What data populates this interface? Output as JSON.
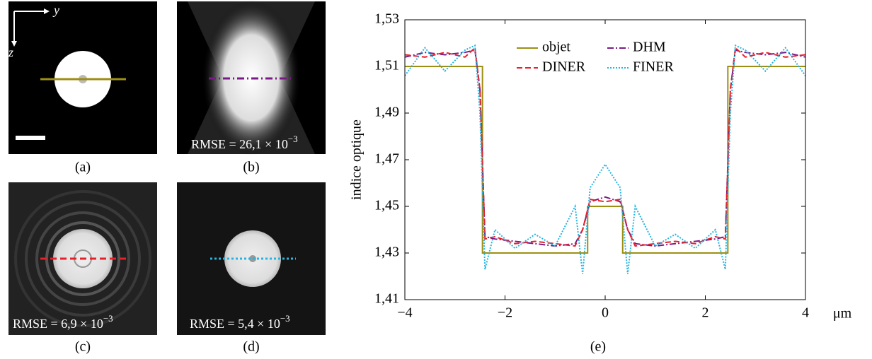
{
  "panels": [
    {
      "caption": "(a)",
      "axis_y": "y",
      "axis_z": "z"
    },
    {
      "caption": "(b)",
      "annotation": "RMSE = 26,1 × 10",
      "exponent": "−3"
    },
    {
      "caption": "(c)",
      "annotation": "RMSE = 6,9 × 10",
      "exponent": "−3"
    },
    {
      "caption": "(d)",
      "annotation": "RMSE = 5,4 × 10",
      "exponent": "−3"
    }
  ],
  "chart_data": {
    "type": "line",
    "caption": "(e)",
    "ylabel": "indice optique",
    "xlabel": "μm",
    "xlim": [
      -4,
      4
    ],
    "xticks": [
      {
        "value": -4,
        "label": "−4"
      },
      {
        "value": -2,
        "label": "−2"
      },
      0,
      2,
      4
    ],
    "ylim": [
      1.41,
      1.53
    ],
    "yticks": [
      {
        "value": 1.41,
        "label": "1,41"
      },
      {
        "value": 1.43,
        "label": "1,43"
      },
      {
        "value": 1.45,
        "label": "1,45"
      },
      {
        "value": 1.47,
        "label": "1,47"
      },
      {
        "value": 1.49,
        "label": "1,49"
      },
      {
        "value": 1.51,
        "label": "1,51"
      },
      {
        "value": 1.53,
        "label": "1,53"
      }
    ],
    "series": [
      {
        "name": "objet",
        "color": "#9c8f12",
        "dash": "solid",
        "x": [
          -4,
          -2.45,
          -2.45,
          -0.35,
          -0.35,
          0.35,
          0.35,
          2.45,
          2.45,
          4
        ],
        "values": [
          1.51,
          1.51,
          1.43,
          1.43,
          1.45,
          1.45,
          1.43,
          1.43,
          1.51,
          1.51
        ]
      },
      {
        "name": "DHM",
        "color": "#7a1a86",
        "dash": "dashdot",
        "x": [
          -4,
          -3.6,
          -3.2,
          -2.8,
          -2.6,
          -2.5,
          -2.4,
          -2.2,
          -1.8,
          -1.4,
          -1.0,
          -0.6,
          -0.45,
          -0.3,
          0,
          0.3,
          0.45,
          0.6,
          1.0,
          1.4,
          1.8,
          2.2,
          2.4,
          2.5,
          2.6,
          2.8,
          3.2,
          3.6,
          4
        ],
        "values": [
          1.514,
          1.516,
          1.515,
          1.516,
          1.517,
          1.5,
          1.437,
          1.436,
          1.435,
          1.434,
          1.433,
          1.434,
          1.44,
          1.452,
          1.454,
          1.452,
          1.44,
          1.434,
          1.433,
          1.434,
          1.435,
          1.436,
          1.437,
          1.5,
          1.517,
          1.516,
          1.515,
          1.516,
          1.514
        ]
      },
      {
        "name": "DINER",
        "color": "#e8202a",
        "dash": "dashed",
        "x": [
          -4,
          -3.6,
          -3.2,
          -2.8,
          -2.6,
          -2.5,
          -2.4,
          -2.2,
          -1.8,
          -1.4,
          -1.0,
          -0.6,
          -0.45,
          -0.3,
          0,
          0.3,
          0.45,
          0.6,
          1.0,
          1.4,
          1.8,
          2.2,
          2.4,
          2.5,
          2.6,
          2.8,
          3.2,
          3.6,
          4
        ],
        "values": [
          1.515,
          1.514,
          1.516,
          1.514,
          1.518,
          1.5,
          1.436,
          1.437,
          1.434,
          1.435,
          1.434,
          1.433,
          1.44,
          1.453,
          1.452,
          1.453,
          1.44,
          1.433,
          1.434,
          1.435,
          1.434,
          1.437,
          1.436,
          1.5,
          1.518,
          1.514,
          1.516,
          1.514,
          1.515
        ]
      },
      {
        "name": "FINER",
        "color": "#26b4e0",
        "dash": "dotted",
        "x": [
          -4,
          -3.6,
          -3.2,
          -2.8,
          -2.6,
          -2.5,
          -2.4,
          -2.2,
          -1.8,
          -1.4,
          -1.0,
          -0.6,
          -0.45,
          -0.3,
          0,
          0.3,
          0.45,
          0.6,
          1.0,
          1.4,
          1.8,
          2.2,
          2.4,
          2.5,
          2.6,
          2.8,
          3.2,
          3.6,
          4
        ],
        "values": [
          1.506,
          1.518,
          1.508,
          1.517,
          1.519,
          1.49,
          1.423,
          1.44,
          1.432,
          1.438,
          1.433,
          1.45,
          1.421,
          1.458,
          1.468,
          1.458,
          1.421,
          1.45,
          1.433,
          1.438,
          1.432,
          1.44,
          1.423,
          1.49,
          1.519,
          1.517,
          1.508,
          1.518,
          1.506
        ]
      }
    ]
  }
}
